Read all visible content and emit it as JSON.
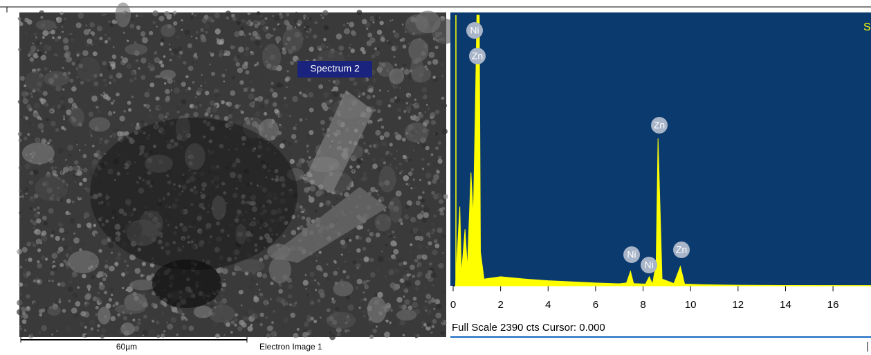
{
  "image": {
    "label": "Spectrum 2",
    "scale_bar": "60µm",
    "caption": "Electron Image 1"
  },
  "chart_data": {
    "type": "area",
    "corner_text": "S",
    "footer": "Full Scale 2390 cts Cursor: 0.000",
    "peak_labels": [
      "Ni",
      "Zn",
      "Zn",
      "Ni",
      "Ni",
      "Zn"
    ],
    "x": [
      0.1,
      0.28,
      0.35,
      0.5,
      0.6,
      0.75,
      0.85,
      0.93,
      1.0,
      1.1,
      1.15,
      1.3,
      2,
      3,
      4,
      5,
      6,
      7,
      7.3,
      7.47,
      7.6,
      8.1,
      8.26,
      8.4,
      8.55,
      8.63,
      8.8,
      9.3,
      9.57,
      9.75,
      10.5,
      12,
      14,
      17.6
    ],
    "series": [
      {
        "color": "#ffff00",
        "values": [
          0,
          700,
          100,
          500,
          150,
          1000,
          600,
          1500,
          2390,
          2390,
          300,
          60,
          80,
          60,
          45,
          35,
          25,
          18,
          25,
          128,
          20,
          15,
          80,
          15,
          200,
          1302,
          60,
          20,
          171,
          15,
          10,
          5,
          3,
          2
        ]
      }
    ],
    "xlim": [
      0,
      17.6
    ],
    "ylim": [
      0,
      2390
    ],
    "xticks": [
      0,
      2,
      4,
      6,
      8,
      10,
      12,
      14,
      16
    ],
    "background": "#0b3a6e"
  }
}
